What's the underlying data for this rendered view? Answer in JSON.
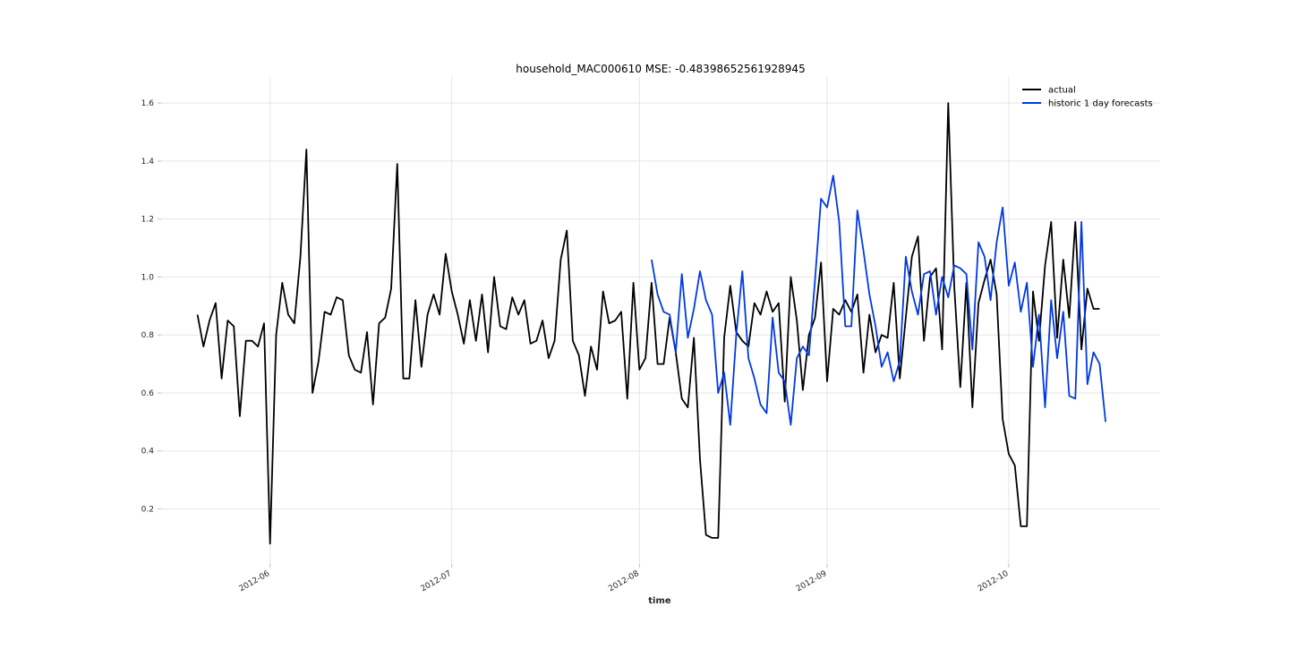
{
  "chart_data": {
    "type": "line",
    "title": "household_MAC000610 MSE: -0.48398652561928945",
    "xlabel": "time",
    "ylabel": "",
    "x_ticks": [
      {
        "date": "2012-06-01",
        "label": "2012-06"
      },
      {
        "date": "2012-07-01",
        "label": "2012-07"
      },
      {
        "date": "2012-08-01",
        "label": "2012-08"
      },
      {
        "date": "2012-09-01",
        "label": "2012-09"
      },
      {
        "date": "2012-10-01",
        "label": "2012-10"
      }
    ],
    "y_ticks": [
      {
        "value": 0.2,
        "label": "0.2"
      },
      {
        "value": 0.4,
        "label": "0.4"
      },
      {
        "value": 0.6,
        "label": "0.6"
      },
      {
        "value": 0.8,
        "label": "0.8"
      },
      {
        "value": 1.0,
        "label": "1.0"
      },
      {
        "value": 1.2,
        "label": "1.2"
      },
      {
        "value": 1.4,
        "label": "1.4"
      },
      {
        "value": 1.6,
        "label": "1.6"
      }
    ],
    "xlim": [
      "2012-05-14",
      "2012-10-26"
    ],
    "ylim": [
      0.01,
      1.69
    ],
    "grid": true,
    "legend_position": "top-right",
    "series": [
      {
        "name": "actual",
        "color": "#000000",
        "start_date": "2012-05-20",
        "values": [
          0.87,
          0.76,
          0.85,
          0.91,
          0.65,
          0.85,
          0.83,
          0.52,
          0.78,
          0.78,
          0.76,
          0.84,
          0.08,
          0.8,
          0.98,
          0.87,
          0.84,
          1.07,
          1.44,
          0.6,
          0.71,
          0.88,
          0.87,
          0.93,
          0.92,
          0.73,
          0.68,
          0.67,
          0.81,
          0.56,
          0.84,
          0.86,
          0.96,
          1.39,
          0.65,
          0.65,
          0.92,
          0.69,
          0.87,
          0.94,
          0.87,
          1.08,
          0.95,
          0.87,
          0.77,
          0.92,
          0.78,
          0.94,
          0.74,
          1.0,
          0.83,
          0.82,
          0.93,
          0.87,
          0.92,
          0.77,
          0.78,
          0.85,
          0.72,
          0.78,
          1.06,
          1.16,
          0.78,
          0.73,
          0.59,
          0.76,
          0.68,
          0.95,
          0.84,
          0.85,
          0.88,
          0.58,
          0.98,
          0.68,
          0.72,
          0.98,
          0.7,
          0.7,
          0.86,
          0.74,
          0.58,
          0.55,
          0.79,
          0.37,
          0.11,
          0.1,
          0.1,
          0.79,
          0.97,
          0.81,
          0.78,
          0.76,
          0.91,
          0.87,
          0.95,
          0.88,
          0.91,
          0.57,
          1.0,
          0.85,
          0.61,
          0.8,
          0.86,
          1.05,
          0.64,
          0.89,
          0.87,
          0.92,
          0.88,
          0.94,
          0.67,
          0.87,
          0.74,
          0.8,
          0.79,
          0.98,
          0.65,
          0.86,
          1.07,
          1.14,
          0.78,
          1.0,
          1.03,
          0.75,
          1.6,
          0.97,
          0.62,
          0.98,
          0.55,
          0.91,
          0.99,
          1.06,
          0.94,
          0.51,
          0.39,
          0.35,
          0.14,
          0.14,
          0.95,
          0.78,
          1.04,
          1.19,
          0.79,
          1.06,
          0.86,
          1.19,
          0.75,
          0.96,
          0.89,
          0.89
        ]
      },
      {
        "name": "historic 1 day forecasts",
        "color": "#0039e6",
        "start_date": "2012-08-03",
        "values": [
          1.06,
          0.94,
          0.88,
          0.87,
          0.74,
          1.01,
          0.79,
          0.89,
          1.02,
          0.92,
          0.87,
          0.6,
          0.67,
          0.49,
          0.8,
          1.02,
          0.72,
          0.65,
          0.56,
          0.53,
          0.86,
          0.67,
          0.64,
          0.49,
          0.72,
          0.76,
          0.73,
          0.99,
          1.27,
          1.24,
          1.35,
          1.19,
          0.83,
          0.83,
          1.23,
          1.09,
          0.94,
          0.83,
          0.69,
          0.74,
          0.64,
          0.71,
          1.07,
          0.95,
          0.87,
          1.01,
          1.02,
          0.87,
          1.0,
          0.93,
          1.04,
          1.03,
          1.01,
          0.75,
          1.12,
          1.07,
          0.92,
          1.12,
          1.24,
          0.97,
          1.05,
          0.88,
          0.98,
          0.69,
          0.87,
          0.55,
          0.92,
          0.72,
          0.88,
          0.59,
          0.58,
          1.19,
          0.63,
          0.74,
          0.7,
          0.5
        ]
      }
    ]
  }
}
